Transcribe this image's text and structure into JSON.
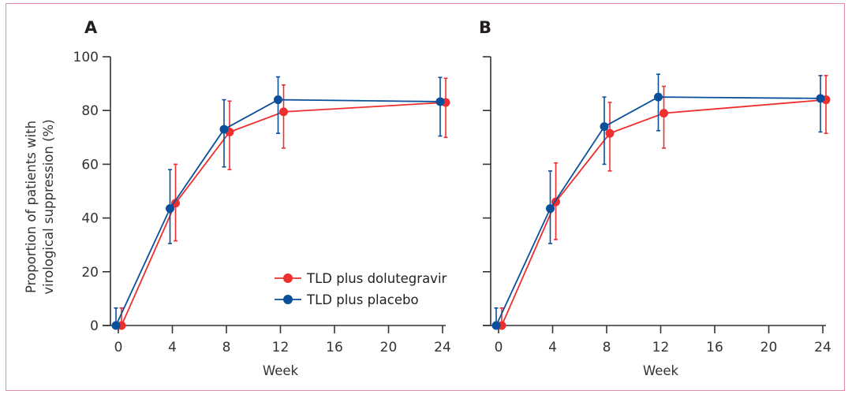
{
  "figure": {
    "legend": [
      {
        "name": "TLD plus dolutegravir",
        "color": "#ee2f2f"
      },
      {
        "name": "TLD plus placebo",
        "color": "#0a4f9c"
      }
    ],
    "axis_color": "#333333",
    "border_color": "#e58aa6"
  },
  "chart_data": [
    {
      "type": "line",
      "panel": "A",
      "title": "A",
      "xlabel": "Week",
      "ylabel": [
        "Proportion of patients with",
        "virological suppression (%)"
      ],
      "x_ticks": [
        0,
        4,
        8,
        12,
        16,
        20,
        24
      ],
      "y_ticks": [
        0,
        20,
        40,
        60,
        80,
        100
      ],
      "y_tick_labels_shown": true,
      "xlim": [
        0,
        24
      ],
      "ylim": [
        0,
        100
      ],
      "grid": false,
      "legend_position": "lower-right",
      "show_legend": true,
      "x": [
        0,
        4,
        8,
        12,
        24
      ],
      "series": [
        {
          "name": "TLD plus dolutegravir",
          "color": "#ee2f2f",
          "values": [
            0,
            45.5,
            72,
            79.5,
            83
          ],
          "ci_low": [
            0,
            31.5,
            58,
            66,
            70
          ],
          "ci_high": [
            6.5,
            60,
            83.5,
            89.5,
            92
          ]
        },
        {
          "name": "TLD plus placebo",
          "color": "#0a4f9c",
          "values": [
            0,
            43.5,
            73,
            84,
            83.3
          ],
          "ci_low": [
            0,
            30.5,
            59,
            71.5,
            70.5
          ],
          "ci_high": [
            6.5,
            58,
            84,
            92.5,
            92.3
          ]
        }
      ]
    },
    {
      "type": "line",
      "panel": "B",
      "title": "B",
      "xlabel": "Week",
      "ylabel": [],
      "x_ticks": [
        0,
        4,
        8,
        12,
        16,
        20,
        24
      ],
      "y_ticks": [
        0,
        20,
        40,
        60,
        80,
        100
      ],
      "y_tick_labels_shown": false,
      "xlim": [
        0,
        24
      ],
      "ylim": [
        0,
        100
      ],
      "grid": false,
      "legend_position": "none",
      "show_legend": false,
      "x": [
        0,
        4,
        8,
        12,
        24
      ],
      "series": [
        {
          "name": "TLD plus dolutegravir",
          "color": "#ee2f2f",
          "values": [
            0,
            46,
            71.5,
            79,
            84
          ],
          "ci_low": [
            0,
            32,
            57.5,
            66,
            71.5
          ],
          "ci_high": [
            6.5,
            60.5,
            83,
            89,
            93
          ]
        },
        {
          "name": "TLD plus placebo",
          "color": "#0a4f9c",
          "values": [
            0,
            43.5,
            74,
            85,
            84.5
          ],
          "ci_low": [
            0,
            30.5,
            60,
            72.5,
            72
          ],
          "ci_high": [
            6.5,
            57.5,
            85,
            93.5,
            93
          ]
        }
      ]
    }
  ]
}
